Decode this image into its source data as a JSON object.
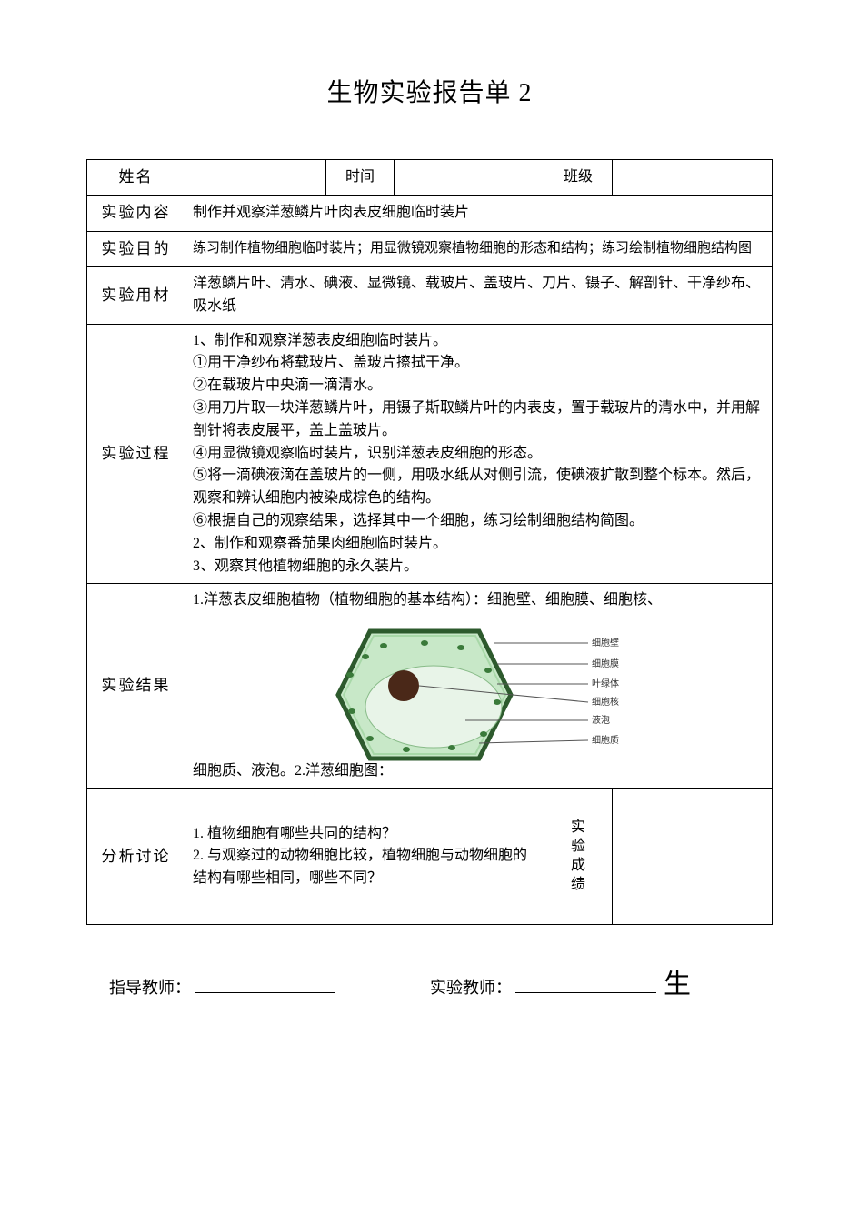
{
  "title": "生物实验报告单 2",
  "row_info": {
    "name_label": "姓名",
    "time_label": "时间",
    "class_label": "班级",
    "name_value": "",
    "time_value": "",
    "class_value": ""
  },
  "row_content": {
    "label": "实验内容",
    "value": "制作并观察洋葱鳞片叶肉表皮细胞临时装片"
  },
  "row_purpose": {
    "label": "实验目的",
    "value": "练习制作植物细胞临时装片；用显微镜观察植物细胞的形态和结构；练习绘制植物细胞结构图"
  },
  "row_materials": {
    "label": "实验用材",
    "value": "洋葱鳞片叶、清水、碘液、显微镜、载玻片、盖玻片、刀片、镊子、解剖针、干净纱布、吸水纸"
  },
  "row_process": {
    "label": "实验过程",
    "lines": [
      "1、制作和观察洋葱表皮细胞临时装片。",
      "①用干净纱布将载玻片、盖玻片擦拭干净。",
      "②在载玻片中央滴一滴清水。",
      "③用刀片取一块洋葱鳞片叶，用镊子斯取鳞片叶的内表皮，置于载玻片的清水中，并用解剖针将表皮展平，盖上盖玻片。",
      "④用显微镜观察临时装片，识别洋葱表皮细胞的形态。",
      "⑤将一滴碘液滴在盖玻片的一侧，用吸水纸从对侧引流，使碘液扩散到整个标本。然后，观察和辨认细胞内被染成棕色的结构。",
      "⑥根据自己的观察结果，选择其中一个细胞，练习绘制细胞结构简图。",
      "2、制作和观察番茄果肉细胞临时装片。",
      "3、观察其他植物细胞的永久装片。"
    ]
  },
  "row_result": {
    "label": "实验结果",
    "text_top": "1.洋葱表皮细胞植物（植物细胞的基本结构）：细胞壁、细胞膜、细胞核、",
    "text_bottom": "细胞质、液泡。2.洋葱细胞图：",
    "diagram": {
      "wall_color": "#2d5a2d",
      "membrane_color": "#a8d8a8",
      "cytoplasm_color": "#c8e8c8",
      "vacuole_color": "#e8f4e8",
      "nucleus_color": "#4a2818",
      "chloroplast_color": "#3a7a3a",
      "line_color": "#555555",
      "label_fontsize": 10,
      "labels": {
        "wall": "细胞壁",
        "membrane": "细胞膜",
        "chloroplast": "叶绿体",
        "nucleus": "细胞核",
        "vacuole": "液泡",
        "cytoplasm": "细胞质"
      }
    }
  },
  "row_discuss": {
    "label": "分析讨论",
    "lines": [
      "1. 植物细胞有哪些共同的结构？",
      "2. 与观察过的动物细胞比较，植物细胞与动物细胞的结构有哪些相同，哪些不同？"
    ],
    "score_label": "实验成绩",
    "score_value": ""
  },
  "footer": {
    "supervise_label": "指导教师：",
    "exp_label": "实验教师：",
    "trailing_char": "生"
  },
  "colors": {
    "text": "#000000",
    "border": "#000000",
    "background": "#ffffff"
  }
}
